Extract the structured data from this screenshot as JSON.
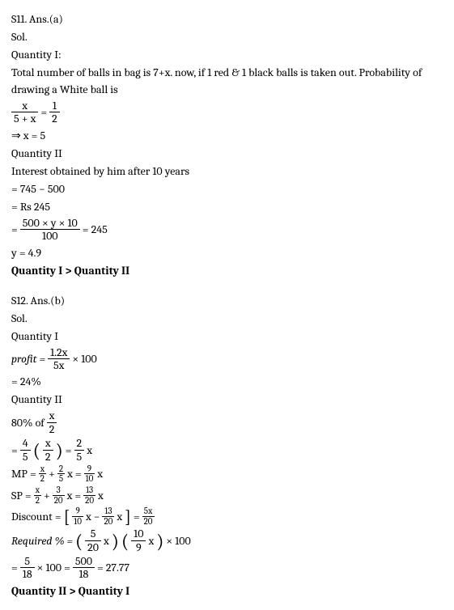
{
  "s11": {
    "header": "S11. Ans.(a)",
    "sol": "Sol.",
    "q1label": "Quantity I:",
    "q1text": "Total number of balls in bag is 7+x. now, if 1 red & 1 black balls is taken out. Probability of drawing a White ball is",
    "frac_lhs_num": "x",
    "frac_lhs_den": "5 + x",
    "eq1": "=",
    "frac_rhs_num": "1",
    "frac_rhs_den": "2",
    "res1": "⇒ x = 5",
    "q2label": "Quantity II",
    "q2text": "Interest obtained by him after 10 years",
    "calc1": "= 745 − 500",
    "calc2": "= Rs 245",
    "eq2_pre": "=",
    "eq2_num": "500 × y × 10",
    "eq2_den": "100",
    "eq2_post": "= 245",
    "yres": "y = 4.9",
    "conclusion": "Quantity I > Quantity II"
  },
  "s12": {
    "header": "S12. Ans.(b)",
    "sol": "Sol.",
    "q1label": "Quantity I",
    "profit_label": "profit =",
    "profit_num": "1.2x",
    "profit_den": "5x",
    "profit_post": "× 100",
    "profit_res": "= 24%",
    "q2label": "Quantity II",
    "line80_pre": "80% of",
    "line80_num": "x",
    "line80_den": "2",
    "eq": "=",
    "f45_num": "4",
    "f45_den": "5",
    "fx2_num": "x",
    "fx2_den": "2",
    "f25x_num": "2",
    "f25x_den": "5",
    "x": "x",
    "plus": "+",
    "mp_label": "MP =",
    "mp_a_num": "x",
    "mp_a_den": "2",
    "mp_b_num": "2",
    "mp_b_den": "5",
    "mp_r_num": "9",
    "mp_r_den": "10",
    "sp_label": "SP =",
    "sp_a_num": "x",
    "sp_a_den": "2",
    "sp_b_num": "3",
    "sp_b_den": "20",
    "sp_r_num": "13",
    "sp_r_den": "20",
    "disc_label": "Discount =",
    "disc_a_num": "9",
    "disc_a_den": "10",
    "minus": "−",
    "disc_b_num": "13",
    "disc_b_den": "20",
    "disc_r_num": "5x",
    "disc_r_den": "20",
    "req_label": "Required % =",
    "req_a_num": "5",
    "req_a_den": "20",
    "req_b_num": "10",
    "req_b_den": "9",
    "req_post": "× 100",
    "fin_a_num": "5",
    "fin_a_den": "18",
    "fin_mid": "× 100 =",
    "fin_b_num": "500",
    "fin_b_den": "18",
    "fin_post": "= 27.77",
    "conclusion": "Quantity II > Quantity I"
  }
}
